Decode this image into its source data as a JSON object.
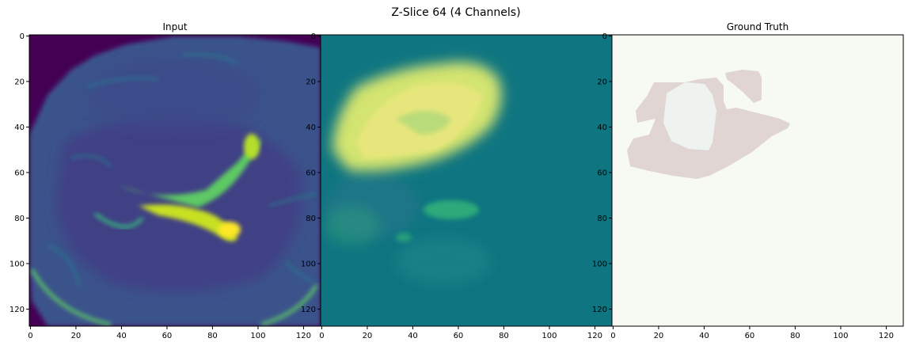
{
  "figure": {
    "suptitle": "Z-Slice 64 (4 Channels)"
  },
  "panels": [
    {
      "title": "Input",
      "description": "viridis MRI slice",
      "colormap": "viridis"
    },
    {
      "title": "",
      "description": "prediction heatmap",
      "colormap": "viridis"
    },
    {
      "title": "Ground Truth",
      "description": "segmentation mask",
      "colormap": "pastel"
    }
  ],
  "axes": {
    "xticks": [
      "0",
      "20",
      "40",
      "60",
      "80",
      "100",
      "120"
    ],
    "yticks": [
      "0",
      "20",
      "40",
      "60",
      "80",
      "100",
      "120"
    ],
    "xlim": [
      0,
      127
    ],
    "ylim": [
      127,
      0
    ]
  },
  "colors": {
    "viridis_dark": "#440154",
    "viridis_blue": "#3b528b",
    "viridis_teal": "#21908d",
    "viridis_green": "#5dc963",
    "viridis_yellow": "#fde725",
    "pred_bg": "#0f7580",
    "mask_bg": "#f6faf2",
    "mask_outer": "#e1d5d3",
    "mask_inner": "#eef3ef"
  }
}
